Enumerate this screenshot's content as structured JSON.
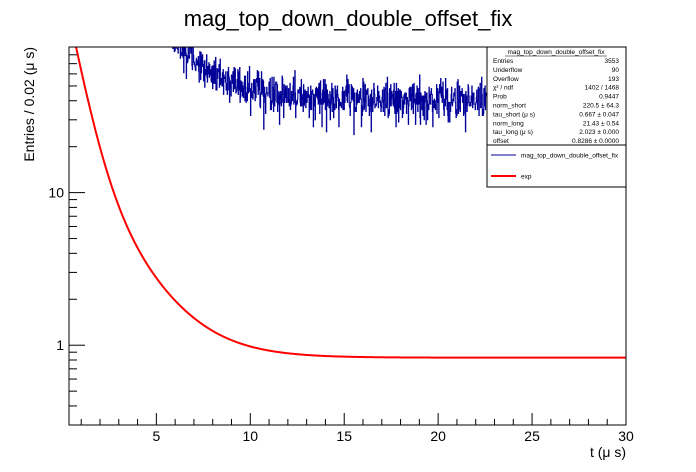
{
  "chart_data": {
    "type": "histogram",
    "title": "mag_top_down_double_offset_fix",
    "xlabel": "t (μ s)",
    "ylabel": "Entries / 0.02 (μ s)",
    "xlim": [
      0.35,
      30
    ],
    "ylim": [
      0.3,
      90
    ],
    "y_scale": "log",
    "bin_width": 0.02,
    "x_ticks": [
      5,
      10,
      15,
      20,
      25,
      30
    ],
    "x_tick_labels": [
      "5",
      "10",
      "15",
      "20",
      "25",
      "30"
    ],
    "y_ticks": [
      1,
      10
    ],
    "y_tick_labels": [
      "1",
      "10"
    ],
    "histogram_color": "#000099",
    "fit_color": "#ff0000",
    "fit": {
      "name": "exp",
      "model": "norm_short*exp(-t/tau_short) + norm_long*exp(-t/tau_long) + offset",
      "norm_short": 220.5,
      "tau_short": 0.667,
      "norm_long": 21.43,
      "tau_long": 2.023,
      "offset": 0.8286
    },
    "stats_box": {
      "title": "mag_top_down_double_offset_fix",
      "rows": [
        {
          "label": "Entries",
          "value": "3553"
        },
        {
          "label": "Underflow",
          "value": "90"
        },
        {
          "label": "Overflow",
          "value": "193"
        },
        {
          "label": "χ² / ndf",
          "value": "1402 / 1468"
        },
        {
          "label": "Prob",
          "value": "0.9447"
        },
        {
          "label": "norm_short",
          "value": "220.5 ± 64.3"
        },
        {
          "label": "tau_short (μ s)",
          "value": "0.667 ± 0.047"
        },
        {
          "label": "norm_long",
          "value": "21.43 ± 0.54"
        },
        {
          "label": "tau_long (μ s)",
          "value": "2.023 ± 0.000"
        },
        {
          "label": "offset",
          "value": "0.8286 ± 0.0000"
        }
      ]
    },
    "legend": {
      "placement": "top-right",
      "entries": [
        {
          "label": "mag_top_down_double_offset_fix",
          "color": "#000099"
        },
        {
          "label": "exp",
          "color": "#ff0000"
        }
      ]
    }
  }
}
